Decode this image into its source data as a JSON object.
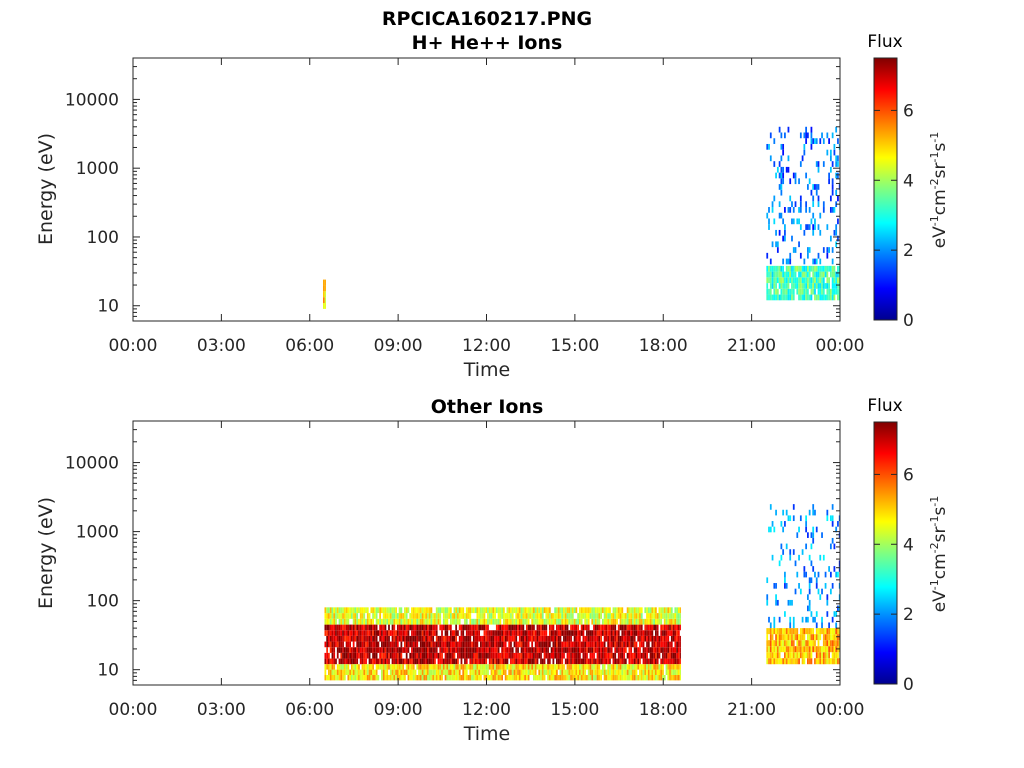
{
  "figure": {
    "title_line1": "RPCICA160217.PNG",
    "title_line2": "H+ He++ Ions",
    "title_bottom": "Other Ions"
  },
  "colors": {
    "colormap": [
      "#00008f",
      "#0000ff",
      "#0080ff",
      "#00ffff",
      "#80ff80",
      "#ffff00",
      "#ff8000",
      "#ff0000",
      "#800000"
    ]
  },
  "chart_data": [
    {
      "type": "heatmap",
      "title": "RPCICA160217.PNG H+ He++ Ions",
      "xlabel": "Time",
      "ylabel": "Energy (eV)",
      "x_tick_labels": [
        "00:00",
        "03:00",
        "06:00",
        "09:00",
        "12:00",
        "15:00",
        "18:00",
        "21:00",
        "00:00"
      ],
      "x_range_hours": [
        0,
        24
      ],
      "y_scale": "log",
      "y_range": [
        6,
        40000
      ],
      "y_tick_values": [
        10,
        100,
        1000,
        10000
      ],
      "y_tick_labels": [
        "10",
        "100",
        "1000",
        "10000"
      ],
      "colorbar": {
        "title": "Flux",
        "label": "eV-1cm-2sr-1s-1",
        "range": [
          0,
          7.5
        ],
        "tick_labels": [
          "0",
          "2",
          "4",
          "6"
        ]
      },
      "regions": [
        {
          "t_start": 6.45,
          "t_end": 6.55,
          "e_min": 9,
          "e_max": 24,
          "flux": 4.8
        },
        {
          "t_start": 21.5,
          "t_end": 24.0,
          "e_min": 12,
          "e_max": 38,
          "flux": 3.3
        },
        {
          "t_start": 21.5,
          "t_end": 24.0,
          "e_min": 40,
          "e_max": 4000,
          "flux": 1.8
        }
      ]
    },
    {
      "type": "heatmap",
      "title": "Other Ions",
      "xlabel": "Time",
      "ylabel": "Energy (eV)",
      "x_tick_labels": [
        "00:00",
        "03:00",
        "06:00",
        "09:00",
        "12:00",
        "15:00",
        "18:00",
        "21:00",
        "00:00"
      ],
      "x_range_hours": [
        0,
        24
      ],
      "y_scale": "log",
      "y_range": [
        6,
        40000
      ],
      "y_tick_values": [
        10,
        100,
        1000,
        10000
      ],
      "y_tick_labels": [
        "10",
        "100",
        "1000",
        "10000"
      ],
      "colorbar": {
        "title": "Flux",
        "label": "eV-1cm-2sr-1s-1",
        "range": [
          0,
          7.5
        ],
        "tick_labels": [
          "0",
          "2",
          "4",
          "6"
        ]
      },
      "regions": [
        {
          "t_start": 6.5,
          "t_end": 18.6,
          "e_min": 12,
          "e_max": 45,
          "flux": 7.0
        },
        {
          "t_start": 6.5,
          "t_end": 18.6,
          "e_min": 45,
          "e_max": 80,
          "flux": 4.5
        },
        {
          "t_start": 6.5,
          "t_end": 18.6,
          "e_min": 7,
          "e_max": 12,
          "flux": 4.8
        },
        {
          "t_start": 21.5,
          "t_end": 24.0,
          "e_min": 12,
          "e_max": 40,
          "flux": 5.2
        },
        {
          "t_start": 21.5,
          "t_end": 24.0,
          "e_min": 40,
          "e_max": 2500,
          "flux": 2.0
        }
      ]
    }
  ]
}
